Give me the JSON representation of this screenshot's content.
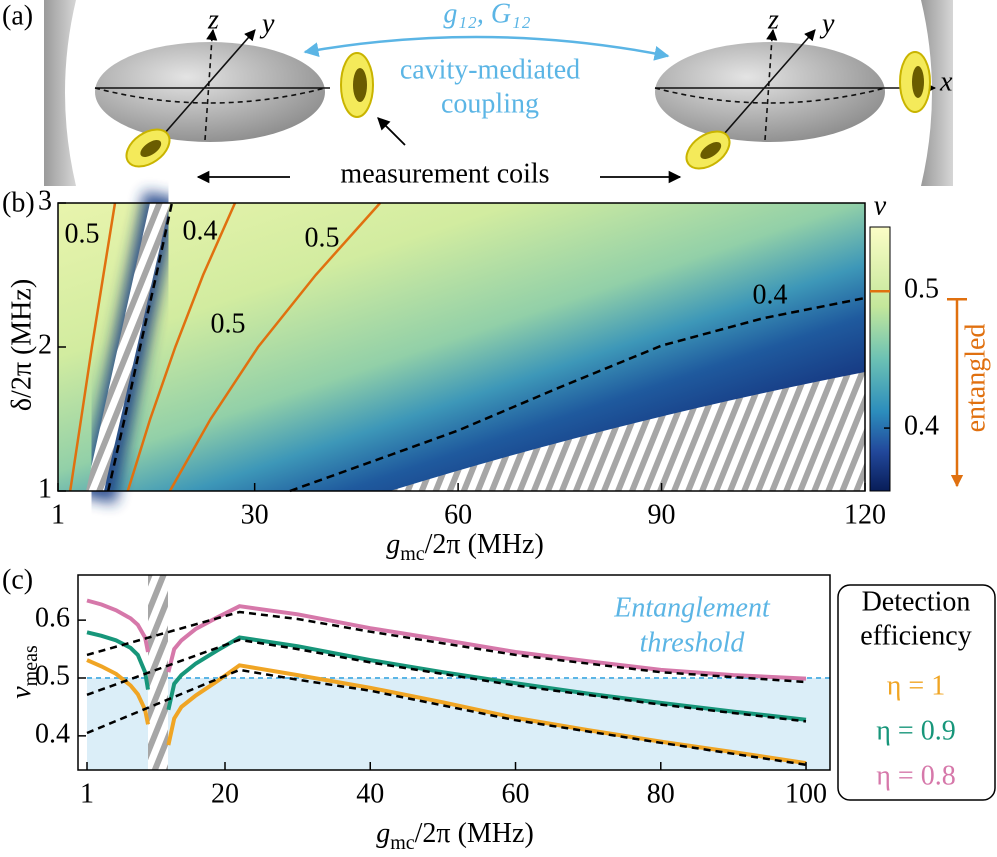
{
  "panel_a": {
    "label": "(a)",
    "axis_labels": [
      "z",
      "y",
      "z",
      "y",
      "x"
    ],
    "coupling": "g₁₂, G₁₂",
    "coupling_text": [
      "cavity-mediated",
      "coupling"
    ],
    "coils": "measurement coils"
  },
  "chart_data": [
    {
      "type": "heatmap",
      "panel_label": "(b)",
      "x_label": {
        "main": "g",
        "sub": "mc",
        "rest": "/2π (MHz)"
      },
      "y_label": "δ/2π (MHz)",
      "xlim": [
        1,
        120
      ],
      "ylim": [
        1,
        3
      ],
      "xticks": [
        1,
        30,
        60,
        90,
        120
      ],
      "yticks": [
        1,
        2,
        3
      ],
      "colorbar": {
        "label": "ν",
        "lim": [
          0.354,
          0.547
        ],
        "ticks": [
          0.4,
          0.5
        ],
        "annotation": "entangled",
        "annotation_color": "#e0700f"
      },
      "contours": [
        {
          "level": 0.5,
          "color": "#e0700f",
          "style": "solid",
          "x": [
            2.8,
            4.4,
            6.0,
            7.7,
            9.4
          ],
          "y": [
            1,
            1.5,
            2,
            2.5,
            3
          ]
        },
        {
          "level": 0.4,
          "color": "#000000",
          "style": "dashed",
          "x": [
            8.4,
            10.8,
            13.1,
            15.5,
            17.8
          ],
          "y": [
            1,
            1.5,
            2,
            2.5,
            3
          ]
        },
        {
          "level": 0.5,
          "color": "#e0700f",
          "style": "solid",
          "x": [
            11.3,
            14.6,
            18.3,
            22.4,
            27.1
          ],
          "y": [
            1,
            1.5,
            2,
            2.5,
            3
          ]
        },
        {
          "level": 0.5,
          "color": "#e0700f",
          "style": "solid",
          "x": [
            17.5,
            23.5,
            30.5,
            39,
            48.5
          ],
          "y": [
            1,
            1.5,
            2,
            2.5,
            3
          ]
        },
        {
          "level": 0.4,
          "color": "#000000",
          "style": "dashed",
          "x": [
            35.2,
            50,
            60,
            75,
            90,
            105,
            120
          ],
          "y": [
            1,
            1.25,
            1.42,
            1.72,
            2.01,
            2.2,
            2.34
          ]
        }
      ]
    },
    {
      "type": "line",
      "panel_label": "(c)",
      "x_label": {
        "main": "g",
        "sub": "mc",
        "rest": "/2π (MHz)"
      },
      "y_label": {
        "main": "ν",
        "sub": "meas"
      },
      "xlim": [
        -0.24,
        103.3
      ],
      "ylim": [
        0.341,
        0.678
      ],
      "xticks": [
        1,
        20,
        40,
        60,
        80,
        100
      ],
      "yticks": [
        0.4,
        0.5,
        0.6
      ],
      "threshold": 0.5,
      "threshold_color": "#5bb5e5",
      "threshold_label": [
        "Entanglement",
        "threshold"
      ],
      "legend_title": [
        "Detection",
        "efficiency"
      ],
      "series": [
        {
          "name": "η = 1",
          "color": "#f0a524",
          "style": "solid",
          "x": [
            1,
            3,
            5,
            7,
            8,
            9,
            9.4,
            11,
            12.2,
            13,
            14,
            16,
            19,
            22,
            30,
            40,
            50,
            60,
            70,
            80,
            90,
            100
          ],
          "values": [
            0.531,
            0.52,
            0.507,
            0.487,
            0.472,
            0.445,
            0.42,
            null,
            0.384,
            0.43,
            0.45,
            0.47,
            0.495,
            0.522,
            0.505,
            0.483,
            0.458,
            0.431,
            0.41,
            0.39,
            0.372,
            0.353
          ]
        },
        {
          "name": "η = 0.9",
          "color": "#17967a",
          "style": "solid",
          "x": [
            1,
            3,
            5,
            7,
            8,
            9,
            9.4,
            11,
            12.2,
            13,
            14,
            16,
            19,
            22,
            30,
            40,
            50,
            60,
            70,
            80,
            90,
            100
          ],
          "values": [
            0.579,
            0.573,
            0.565,
            0.552,
            0.54,
            0.51,
            0.48,
            null,
            0.445,
            0.49,
            0.505,
            0.525,
            0.548,
            0.57,
            0.555,
            0.531,
            0.51,
            0.491,
            0.473,
            0.457,
            0.442,
            0.428
          ]
        },
        {
          "name": "η = 0.8",
          "color": "#d678aa",
          "style": "solid",
          "x": [
            1,
            3,
            5,
            7,
            8,
            9,
            9.4,
            11,
            12.2,
            13,
            14,
            16,
            19,
            22,
            30,
            40,
            50,
            60,
            70,
            80,
            90,
            100
          ],
          "values": [
            0.634,
            0.627,
            0.617,
            0.603,
            0.592,
            0.57,
            0.545,
            null,
            0.51,
            0.55,
            0.565,
            0.585,
            0.605,
            0.624,
            0.61,
            0.586,
            0.566,
            0.545,
            0.529,
            0.514,
            0.505,
            0.499
          ]
        },
        {
          "color": "#000000",
          "style": "dashed",
          "x": [
            1,
            22,
            30,
            40,
            60,
            80,
            100
          ],
          "values": [
            0.405,
            0.514,
            0.497,
            0.478,
            0.427,
            0.388,
            0.35
          ]
        },
        {
          "color": "#000000",
          "style": "dashed",
          "x": [
            1,
            22,
            30,
            40,
            60,
            80,
            100
          ],
          "values": [
            0.471,
            0.566,
            0.55,
            0.527,
            0.487,
            0.454,
            0.425
          ]
        },
        {
          "color": "#000000",
          "style": "dashed",
          "x": [
            1,
            22,
            30,
            40,
            60,
            80,
            100
          ],
          "values": [
            0.54,
            0.614,
            0.602,
            0.58,
            0.54,
            0.51,
            0.493
          ]
        }
      ]
    }
  ]
}
